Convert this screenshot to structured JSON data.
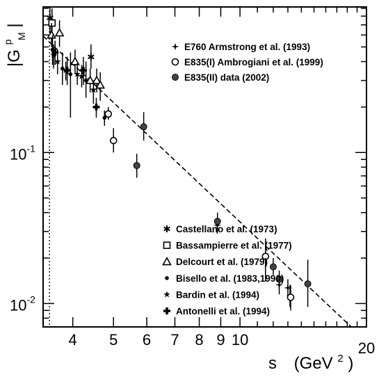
{
  "chart_data": {
    "type": "scatter",
    "title": "",
    "xlabel": "s",
    "xlabel_unit": "(GeV",
    "xlabel_unit_sup": "2",
    "xlabel_unit_close": ")",
    "ylabel_main": "|G",
    "ylabel_sup": "p",
    "ylabel_sub": "M",
    "ylabel_close": "|",
    "xscale": "log",
    "yscale": "log",
    "xlim": [
      3.4,
      20
    ],
    "ylim": [
      0.007,
      0.92
    ],
    "grid": false,
    "x_ticks": [
      {
        "value": 4,
        "label": "4"
      },
      {
        "value": 5,
        "label": "5"
      },
      {
        "value": 6,
        "label": "6"
      },
      {
        "value": 7,
        "label": "7"
      },
      {
        "value": 8,
        "label": "8"
      },
      {
        "value": 9,
        "label": "9"
      },
      {
        "value": 10,
        "label": "10"
      },
      {
        "value": 20,
        "label": "20"
      }
    ],
    "y_ticks": [
      {
        "value": 0.1,
        "base": "10",
        "exp": "-1"
      },
      {
        "value": 0.01,
        "base": "10",
        "exp": "-2"
      }
    ],
    "threshold_line": {
      "x": 3.52
    },
    "fit_line": {
      "x": [
        3.4,
        18.4
      ],
      "y": [
        0.59,
        0.007
      ]
    },
    "legend_top": [
      {
        "label": "E760 Armstrong et al. (1993)",
        "marker": "star4"
      },
      {
        "label": "E835(I) Ambrogiani et al. (1999)",
        "marker": "circle-open"
      },
      {
        "label": "E835(II) data (2002)",
        "marker": "circle-filled"
      }
    ],
    "legend_bottom": [
      {
        "label": "Castellano et al. (1973)",
        "marker": "asterisk"
      },
      {
        "label": "Bassampierre et al. (1977)",
        "marker": "square-open"
      },
      {
        "label": "Delcourt et al. (1979)",
        "marker": "triangle-open"
      },
      {
        "label": "Bisello et al. (1983,1990)",
        "marker": "dot"
      },
      {
        "label": "Bardin et al. (1994)",
        "marker": "star"
      },
      {
        "label": "Antonelli et al. (1994)",
        "marker": "cross-filled"
      }
    ],
    "series": [
      {
        "name": "Castellano et al. (1973)",
        "marker": "asterisk",
        "points": [
          {
            "x": 3.53,
            "y": 0.78,
            "ylo": 0.62,
            "yhi": 0.92
          },
          {
            "x": 4.42,
            "y": 0.43,
            "ylo": 0.36,
            "yhi": 0.52
          }
        ]
      },
      {
        "name": "Bassampierre et al. (1977)",
        "marker": "square-open",
        "points": [
          {
            "x": 3.57,
            "y": 0.72,
            "ylo": 0.55,
            "yhi": 0.9
          }
        ]
      },
      {
        "name": "Delcourt et al. (1979)",
        "marker": "triangle-open",
        "points": [
          {
            "x": 3.56,
            "y": 0.6,
            "ylo": 0.5,
            "yhi": 0.72
          },
          {
            "x": 3.72,
            "y": 0.62,
            "ylo": 0.5,
            "yhi": 0.75
          },
          {
            "x": 4.05,
            "y": 0.4,
            "ylo": 0.33,
            "yhi": 0.48
          },
          {
            "x": 4.4,
            "y": 0.3,
            "ylo": 0.25,
            "yhi": 0.36
          },
          {
            "x": 4.56,
            "y": 0.3,
            "ylo": 0.25,
            "yhi": 0.36
          },
          {
            "x": 4.65,
            "y": 0.28,
            "ylo": 0.22,
            "yhi": 0.34
          }
        ]
      },
      {
        "name": "Bisello et al. (1983,1990)",
        "marker": "dot",
        "points": [
          {
            "x": 3.58,
            "y": 0.48,
            "ylo": 0.38,
            "yhi": 0.6
          },
          {
            "x": 3.78,
            "y": 0.36,
            "ylo": 0.28,
            "yhi": 0.46
          },
          {
            "x": 3.95,
            "y": 0.33,
            "ylo": 0.17,
            "yhi": 0.46
          },
          {
            "x": 4.3,
            "y": 0.3,
            "ylo": 0.23,
            "yhi": 0.4
          },
          {
            "x": 4.76,
            "y": 0.17,
            "ylo": 0.15,
            "yhi": 0.19
          }
        ]
      },
      {
        "name": "Bardin et al. (1994)",
        "marker": "star",
        "points": [
          {
            "x": 3.6,
            "y": 0.44,
            "ylo": 0.36,
            "yhi": 0.52
          },
          {
            "x": 3.68,
            "y": 0.4,
            "ylo": 0.33,
            "yhi": 0.48
          },
          {
            "x": 3.85,
            "y": 0.35,
            "ylo": 0.3,
            "yhi": 0.4
          },
          {
            "x": 4.1,
            "y": 0.33,
            "ylo": 0.28,
            "yhi": 0.39
          },
          {
            "x": 4.2,
            "y": 0.32,
            "ylo": 0.27,
            "yhi": 0.38
          },
          {
            "x": 4.48,
            "y": 0.26,
            "ylo": 0.21,
            "yhi": 0.3
          }
        ]
      },
      {
        "name": "Antonelli et al. (1994)",
        "marker": "cross-filled",
        "points": [
          {
            "x": 3.63,
            "y": 0.46,
            "ylo": 0.38,
            "yhi": 0.55
          },
          {
            "x": 3.88,
            "y": 0.35,
            "ylo": 0.28,
            "yhi": 0.43
          },
          {
            "x": 4.24,
            "y": 0.35,
            "ylo": 0.28,
            "yhi": 0.43
          },
          {
            "x": 4.55,
            "y": 0.2,
            "ylo": 0.17,
            "yhi": 0.23
          }
        ]
      },
      {
        "name": "E760 Armstrong et al. (1993)",
        "marker": "star4",
        "points": [
          {
            "x": 8.83,
            "y": 0.033,
            "ylo": 0.029,
            "yhi": 0.037
          },
          {
            "x": 12.4,
            "y": 0.0133,
            "ylo": 0.0115,
            "yhi": 0.0152
          },
          {
            "x": 13.0,
            "y": 0.0127,
            "ylo": 0.011,
            "yhi": 0.0145
          },
          {
            "x": 13.15,
            "y": 0.0113,
            "ylo": 0.0095,
            "yhi": 0.0133
          }
        ]
      },
      {
        "name": "E835(I) Ambrogiani et al. (1999)",
        "marker": "circle-open",
        "points": [
          {
            "x": 4.86,
            "y": 0.18,
            "ylo": 0.165,
            "yhi": 0.2
          },
          {
            "x": 5.0,
            "y": 0.12,
            "ylo": 0.1,
            "yhi": 0.145
          },
          {
            "x": 11.5,
            "y": 0.0205,
            "ylo": 0.014,
            "yhi": 0.027
          },
          {
            "x": 13.2,
            "y": 0.011,
            "ylo": 0.009,
            "yhi": 0.0132
          }
        ]
      },
      {
        "name": "E835(II) data (2002)",
        "marker": "circle-filled",
        "points": [
          {
            "x": 5.68,
            "y": 0.082,
            "ylo": 0.068,
            "yhi": 0.098
          },
          {
            "x": 5.9,
            "y": 0.148,
            "ylo": 0.12,
            "yhi": 0.185
          },
          {
            "x": 8.84,
            "y": 0.035,
            "ylo": 0.03,
            "yhi": 0.04
          },
          {
            "x": 12.0,
            "y": 0.0175,
            "ylo": 0.0155,
            "yhi": 0.02
          },
          {
            "x": 12.4,
            "y": 0.0145,
            "ylo": 0.0125,
            "yhi": 0.0165
          },
          {
            "x": 14.5,
            "y": 0.0135,
            "ylo": 0.0095,
            "yhi": 0.0195
          }
        ]
      }
    ]
  }
}
